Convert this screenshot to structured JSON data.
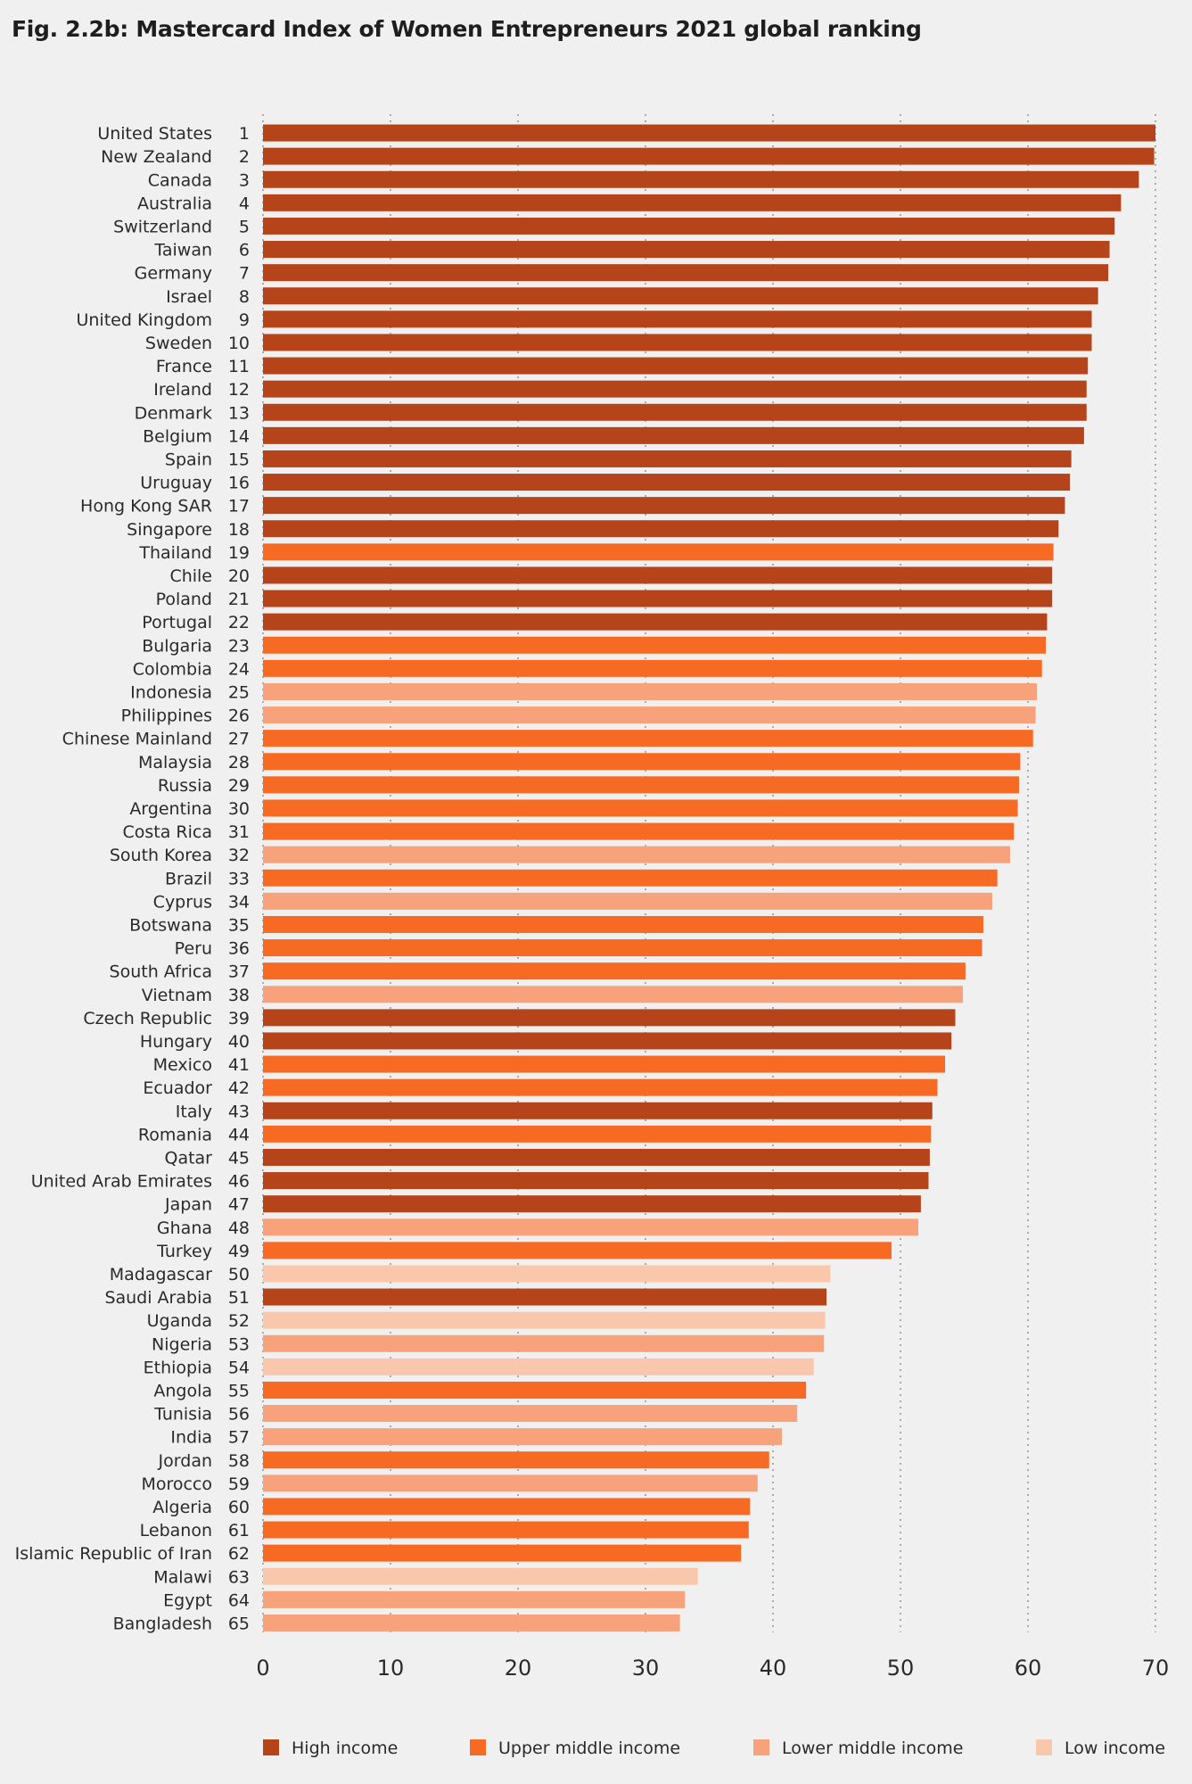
{
  "title": "Fig. 2.2b: Mastercard Index of Women Entrepreneurs 2021 global ranking",
  "chart_data": {
    "type": "bar",
    "orientation": "horizontal",
    "title": "Fig. 2.2b: Mastercard Index of Women Entrepreneurs 2021 global ranking",
    "xlim": [
      0,
      70
    ],
    "xticks": [
      0,
      10,
      20,
      30,
      40,
      50,
      60,
      70
    ],
    "grid": "vertical dotted",
    "legend_position": "bottom",
    "colors": {
      "High income": "#b5441a",
      "Upper middle income": "#f76a24",
      "Lower middle income": "#f7a27a",
      "Low income": "#f9c7ab"
    },
    "legend": [
      "High income",
      "Upper middle income",
      "Lower middle income",
      "Low income"
    ],
    "rows": [
      {
        "country": "United States",
        "rank": 1,
        "value": 70.0,
        "group": "High income"
      },
      {
        "country": "New Zealand",
        "rank": 2,
        "value": 69.9,
        "group": "High income"
      },
      {
        "country": "Canada",
        "rank": 3,
        "value": 68.7,
        "group": "High income"
      },
      {
        "country": "Australia",
        "rank": 4,
        "value": 67.3,
        "group": "High income"
      },
      {
        "country": "Switzerland",
        "rank": 5,
        "value": 66.8,
        "group": "High income"
      },
      {
        "country": "Taiwan",
        "rank": 6,
        "value": 66.4,
        "group": "High income"
      },
      {
        "country": "Germany",
        "rank": 7,
        "value": 66.3,
        "group": "High income"
      },
      {
        "country": "Israel",
        "rank": 8,
        "value": 65.5,
        "group": "High income"
      },
      {
        "country": "United Kingdom",
        "rank": 9,
        "value": 65.0,
        "group": "High income"
      },
      {
        "country": "Sweden",
        "rank": 10,
        "value": 65.0,
        "group": "High income"
      },
      {
        "country": "France",
        "rank": 11,
        "value": 64.7,
        "group": "High income"
      },
      {
        "country": "Ireland",
        "rank": 12,
        "value": 64.6,
        "group": "High income"
      },
      {
        "country": "Denmark",
        "rank": 13,
        "value": 64.6,
        "group": "High income"
      },
      {
        "country": "Belgium",
        "rank": 14,
        "value": 64.4,
        "group": "High income"
      },
      {
        "country": "Spain",
        "rank": 15,
        "value": 63.4,
        "group": "High income"
      },
      {
        "country": "Uruguay",
        "rank": 16,
        "value": 63.3,
        "group": "High income"
      },
      {
        "country": "Hong Kong SAR",
        "rank": 17,
        "value": 62.9,
        "group": "High income"
      },
      {
        "country": "Singapore",
        "rank": 18,
        "value": 62.4,
        "group": "High income"
      },
      {
        "country": "Thailand",
        "rank": 19,
        "value": 62.0,
        "group": "Upper middle income"
      },
      {
        "country": "Chile",
        "rank": 20,
        "value": 61.9,
        "group": "High income"
      },
      {
        "country": "Poland",
        "rank": 21,
        "value": 61.9,
        "group": "High income"
      },
      {
        "country": "Portugal",
        "rank": 22,
        "value": 61.5,
        "group": "High income"
      },
      {
        "country": "Bulgaria",
        "rank": 23,
        "value": 61.4,
        "group": "Upper middle income"
      },
      {
        "country": "Colombia",
        "rank": 24,
        "value": 61.1,
        "group": "Upper middle income"
      },
      {
        "country": "Indonesia",
        "rank": 25,
        "value": 60.7,
        "group": "Lower middle income"
      },
      {
        "country": "Philippines",
        "rank": 26,
        "value": 60.6,
        "group": "Lower middle income"
      },
      {
        "country": "Chinese Mainland",
        "rank": 27,
        "value": 60.4,
        "group": "Upper middle income"
      },
      {
        "country": "Malaysia",
        "rank": 28,
        "value": 59.4,
        "group": "Upper middle income"
      },
      {
        "country": "Russia",
        "rank": 29,
        "value": 59.3,
        "group": "Upper middle income"
      },
      {
        "country": "Argentina",
        "rank": 30,
        "value": 59.2,
        "group": "Upper middle income"
      },
      {
        "country": "Costa Rica",
        "rank": 31,
        "value": 58.9,
        "group": "Upper middle income"
      },
      {
        "country": "South Korea",
        "rank": 32,
        "value": 58.6,
        "group": "Lower middle income"
      },
      {
        "country": "Brazil",
        "rank": 33,
        "value": 57.6,
        "group": "Upper middle income"
      },
      {
        "country": "Cyprus",
        "rank": 34,
        "value": 57.2,
        "group": "Lower middle income"
      },
      {
        "country": "Botswana",
        "rank": 35,
        "value": 56.5,
        "group": "Upper middle income"
      },
      {
        "country": "Peru",
        "rank": 36,
        "value": 56.4,
        "group": "Upper middle income"
      },
      {
        "country": "South Africa",
        "rank": 37,
        "value": 55.1,
        "group": "Upper middle income"
      },
      {
        "country": "Vietnam",
        "rank": 38,
        "value": 54.9,
        "group": "Lower middle income"
      },
      {
        "country": "Czech Republic",
        "rank": 39,
        "value": 54.3,
        "group": "High income"
      },
      {
        "country": "Hungary",
        "rank": 40,
        "value": 54.0,
        "group": "High income"
      },
      {
        "country": "Mexico",
        "rank": 41,
        "value": 53.5,
        "group": "Upper middle income"
      },
      {
        "country": "Ecuador",
        "rank": 42,
        "value": 52.9,
        "group": "Upper middle income"
      },
      {
        "country": "Italy",
        "rank": 43,
        "value": 52.5,
        "group": "High income"
      },
      {
        "country": "Romania",
        "rank": 44,
        "value": 52.4,
        "group": "Upper middle income"
      },
      {
        "country": "Qatar",
        "rank": 45,
        "value": 52.3,
        "group": "High income"
      },
      {
        "country": "United Arab Emirates",
        "rank": 46,
        "value": 52.2,
        "group": "High income"
      },
      {
        "country": "Japan",
        "rank": 47,
        "value": 51.6,
        "group": "High income"
      },
      {
        "country": "Ghana",
        "rank": 48,
        "value": 51.4,
        "group": "Lower middle income"
      },
      {
        "country": "Turkey",
        "rank": 49,
        "value": 49.3,
        "group": "Upper middle income"
      },
      {
        "country": "Madagascar",
        "rank": 50,
        "value": 44.5,
        "group": "Low income"
      },
      {
        "country": "Saudi Arabia",
        "rank": 51,
        "value": 44.2,
        "group": "High income"
      },
      {
        "country": "Uganda",
        "rank": 52,
        "value": 44.1,
        "group": "Low income"
      },
      {
        "country": "Nigeria",
        "rank": 53,
        "value": 44.0,
        "group": "Lower middle income"
      },
      {
        "country": "Ethiopia",
        "rank": 54,
        "value": 43.2,
        "group": "Low income"
      },
      {
        "country": "Angola",
        "rank": 55,
        "value": 42.6,
        "group": "Upper middle income"
      },
      {
        "country": "Tunisia",
        "rank": 56,
        "value": 41.9,
        "group": "Lower middle income"
      },
      {
        "country": "India",
        "rank": 57,
        "value": 40.7,
        "group": "Lower middle income"
      },
      {
        "country": "Jordan",
        "rank": 58,
        "value": 39.7,
        "group": "Upper middle income"
      },
      {
        "country": "Morocco",
        "rank": 59,
        "value": 38.8,
        "group": "Lower middle income"
      },
      {
        "country": "Algeria",
        "rank": 60,
        "value": 38.2,
        "group": "Upper middle income"
      },
      {
        "country": "Lebanon",
        "rank": 61,
        "value": 38.1,
        "group": "Upper middle income"
      },
      {
        "country": "Islamic Republic of Iran",
        "rank": 62,
        "value": 37.5,
        "group": "Upper middle income"
      },
      {
        "country": "Malawi",
        "rank": 63,
        "value": 34.1,
        "group": "Low income"
      },
      {
        "country": "Egypt",
        "rank": 64,
        "value": 33.1,
        "group": "Lower middle income"
      },
      {
        "country": "Bangladesh",
        "rank": 65,
        "value": 32.7,
        "group": "Lower middle income"
      }
    ]
  }
}
